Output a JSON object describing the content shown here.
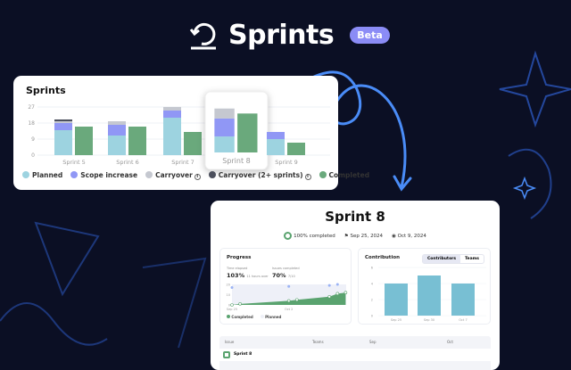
{
  "hero": {
    "title": "Sprints",
    "badge": "Beta",
    "icon": "sprint-cycle-icon"
  },
  "colors": {
    "planned": "#9dd3e0",
    "scope": "#9097f5",
    "carryover": "#c5c8d0",
    "carryover2": "#4b4f5c",
    "completed": "#6aa97c",
    "accent": "#4a8cf7",
    "background": "#0b0f24"
  },
  "sprints_card": {
    "title": "Sprints",
    "legend": [
      {
        "label": "Planned"
      },
      {
        "label": "Scope increase"
      },
      {
        "label": "Carryover",
        "info": true
      },
      {
        "label": "Carryover (2+ sprints)",
        "info": true
      },
      {
        "label": "Completed"
      }
    ]
  },
  "sprint_detail": {
    "title": "Sprint 8",
    "completion": "100% completed",
    "start": "Sep 25, 2024",
    "end": "Oct 9, 2024",
    "progress": {
      "title": "Progress",
      "time_label": "Time elapsed",
      "time_value": "103%",
      "time_note": "11 hours over",
      "issues_label": "Issues completed",
      "issues_value": "70%",
      "issues_note": "7/10",
      "legend": [
        "Completed",
        "Planned"
      ]
    },
    "contribution": {
      "title": "Contribution",
      "tabs": [
        "Contributors",
        "Teams"
      ],
      "active_tab": "Contributors"
    },
    "table": {
      "headers": [
        "Issue",
        "Teams",
        "Sep",
        "Oct"
      ],
      "rows": [
        {
          "issue": "Sprint 8"
        }
      ]
    }
  },
  "chart_data": [
    {
      "type": "bar",
      "stacked": true,
      "categories": [
        "Sprint 5",
        "Sprint 6",
        "Sprint 7",
        "Sprint 8",
        "Sprint 9"
      ],
      "highlighted": "Sprint 8",
      "yticks": [
        0,
        9,
        18,
        27
      ],
      "ylim": [
        0,
        27
      ],
      "grid": true,
      "series": [
        {
          "name": "Planned",
          "stack": "a",
          "values": [
            14,
            11,
            21,
            8,
            9
          ]
        },
        {
          "name": "Scope increase",
          "stack": "a",
          "values": [
            4,
            6,
            4,
            9,
            4
          ]
        },
        {
          "name": "Carryover",
          "stack": "a",
          "values": [
            1,
            2,
            2,
            5,
            0
          ]
        },
        {
          "name": "Carryover (2+ sprints)",
          "stack": "a",
          "values": [
            1,
            0,
            0,
            0,
            0
          ]
        },
        {
          "name": "Completed",
          "stack": "b",
          "values": [
            16,
            16,
            13,
            19.5,
            7
          ]
        }
      ]
    },
    {
      "type": "area",
      "xticks": [
        "Sep 25",
        "Oct 2"
      ],
      "yticks": [
        0,
        10,
        20
      ],
      "ylim": [
        0,
        20
      ],
      "series": [
        {
          "name": "Completed",
          "x": [
            0,
            1,
            7,
            8,
            12,
            13,
            14
          ],
          "y": [
            0,
            1,
            4,
            5,
            8,
            11,
            12
          ]
        },
        {
          "name": "Planned",
          "x": [
            0,
            7,
            12,
            13
          ],
          "y": [
            17,
            18,
            19,
            20
          ]
        }
      ]
    },
    {
      "type": "bar",
      "categories": [
        "Sep 25",
        "Sep 30",
        "Oct 7"
      ],
      "values": [
        4,
        5,
        4
      ],
      "yticks": [
        0,
        2,
        4,
        6
      ],
      "ylim": [
        0,
        6
      ],
      "grid": true
    }
  ]
}
